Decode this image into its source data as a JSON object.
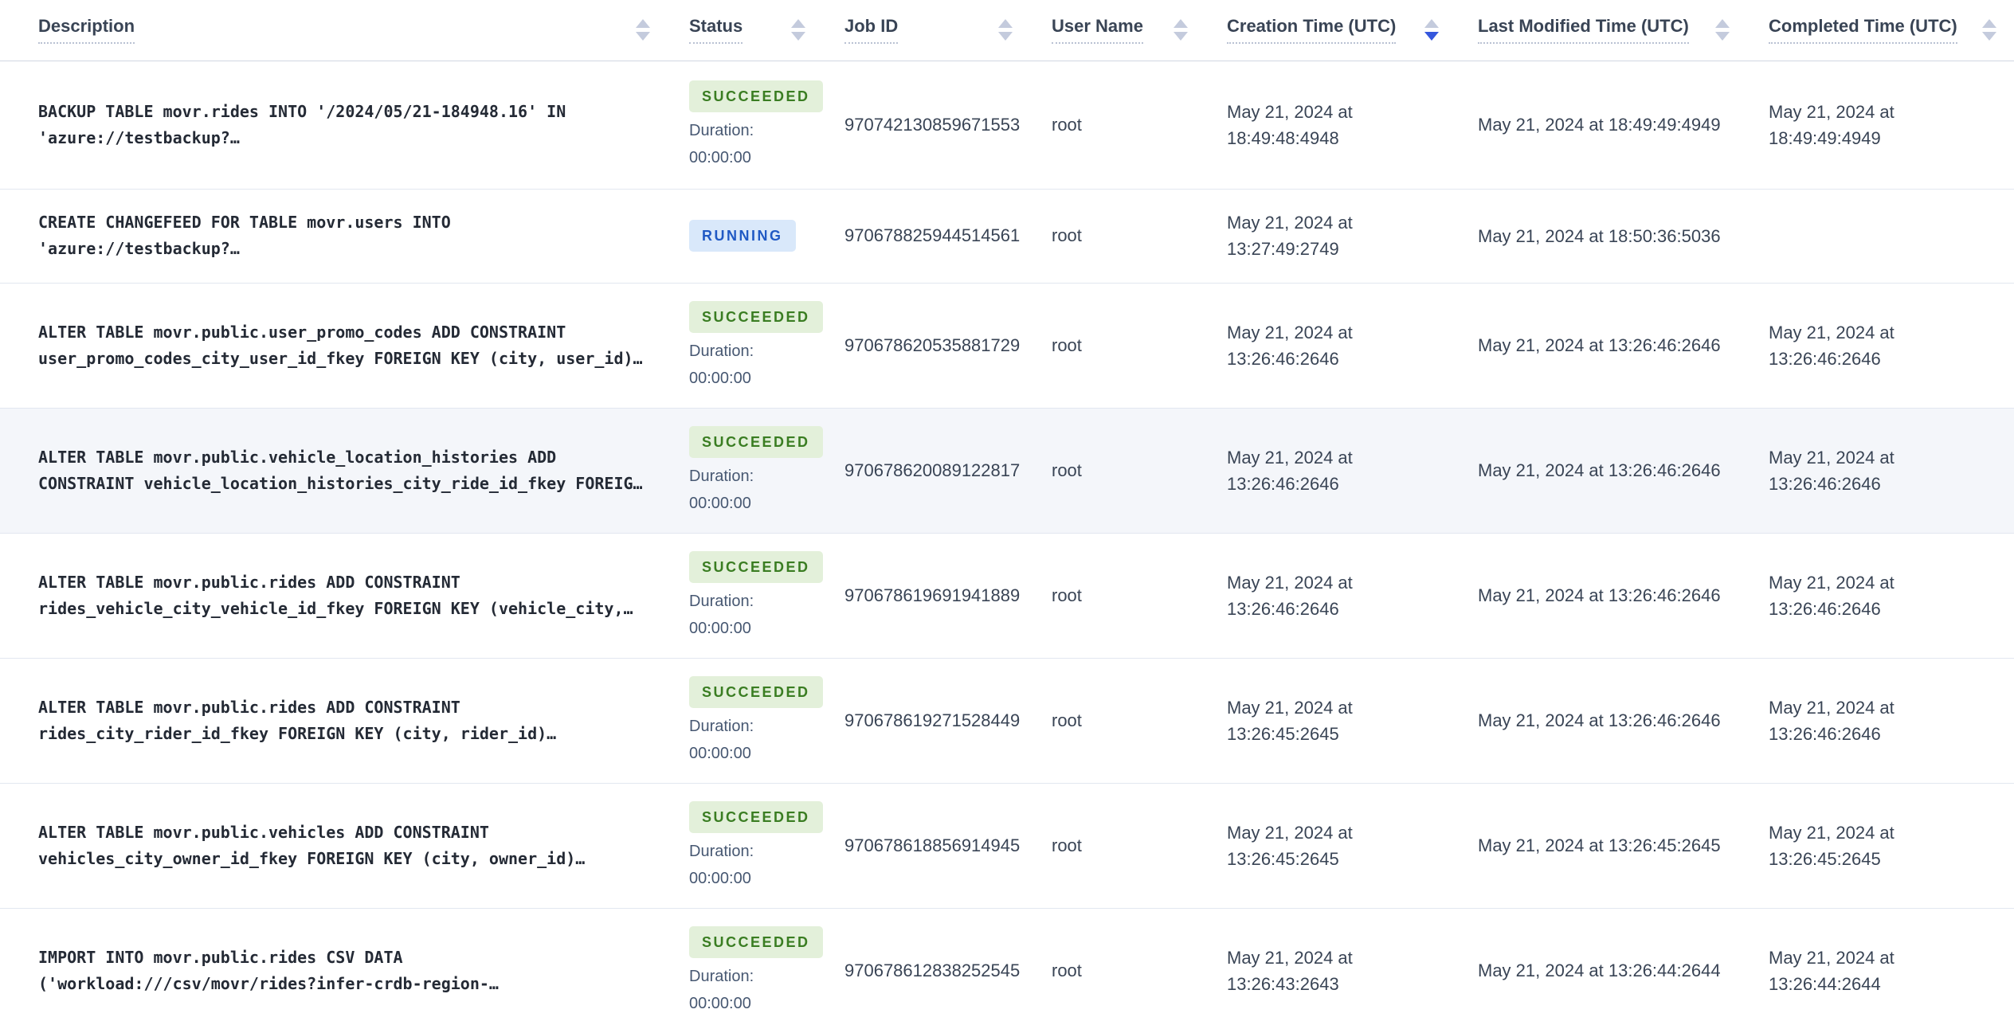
{
  "table": {
    "columns": [
      {
        "label": "Description",
        "sort": "none"
      },
      {
        "label": "Status",
        "sort": "none"
      },
      {
        "label": "Job ID",
        "sort": "none"
      },
      {
        "label": "User Name",
        "sort": "none"
      },
      {
        "label": "Creation Time (UTC)",
        "sort": "desc"
      },
      {
        "label": "Last Modified Time (UTC)",
        "sort": "none"
      },
      {
        "label": "Completed Time (UTC)",
        "sort": "none"
      }
    ],
    "rows": [
      {
        "description": "BACKUP TABLE movr.rides INTO '/2024/05/21-184948.16' IN 'azure://testbackup?…",
        "status": "SUCCEEDED",
        "duration_label": "Duration:",
        "duration": "00:00:00",
        "job_id": "970742130859671553",
        "user_name": "root",
        "creation_time": "May 21, 2024 at 18:49:48:4948",
        "last_modified_time": "May 21, 2024 at 18:49:49:4949",
        "completed_time": "May 21, 2024 at 18:49:49:4949",
        "highlighted": false
      },
      {
        "description": "CREATE CHANGEFEED FOR TABLE movr.users INTO 'azure://testbackup?…",
        "status": "RUNNING",
        "duration_label": "",
        "duration": "",
        "job_id": "970678825944514561",
        "user_name": "root",
        "creation_time": "May 21, 2024 at 13:27:49:2749",
        "last_modified_time": "May 21, 2024 at 18:50:36:5036",
        "completed_time": "",
        "highlighted": false
      },
      {
        "description": "ALTER TABLE movr.public.user_promo_codes ADD CONSTRAINT user_promo_codes_city_user_id_fkey FOREIGN KEY (city, user_id)…",
        "status": "SUCCEEDED",
        "duration_label": "Duration:",
        "duration": "00:00:00",
        "job_id": "970678620535881729",
        "user_name": "root",
        "creation_time": "May 21, 2024 at 13:26:46:2646",
        "last_modified_time": "May 21, 2024 at 13:26:46:2646",
        "completed_time": "May 21, 2024 at 13:26:46:2646",
        "highlighted": false
      },
      {
        "description": "ALTER TABLE movr.public.vehicle_location_histories ADD CONSTRAINT vehicle_location_histories_city_ride_id_fkey FOREIG…",
        "status": "SUCCEEDED",
        "duration_label": "Duration:",
        "duration": "00:00:00",
        "job_id": "970678620089122817",
        "user_name": "root",
        "creation_time": "May 21, 2024 at 13:26:46:2646",
        "last_modified_time": "May 21, 2024 at 13:26:46:2646",
        "completed_time": "May 21, 2024 at 13:26:46:2646",
        "highlighted": true
      },
      {
        "description": "ALTER TABLE movr.public.rides ADD CONSTRAINT rides_vehicle_city_vehicle_id_fkey FOREIGN KEY (vehicle_city,…",
        "status": "SUCCEEDED",
        "duration_label": "Duration:",
        "duration": "00:00:00",
        "job_id": "970678619691941889",
        "user_name": "root",
        "creation_time": "May 21, 2024 at 13:26:46:2646",
        "last_modified_time": "May 21, 2024 at 13:26:46:2646",
        "completed_time": "May 21, 2024 at 13:26:46:2646",
        "highlighted": false
      },
      {
        "description": "ALTER TABLE movr.public.rides ADD CONSTRAINT rides_city_rider_id_fkey FOREIGN KEY (city, rider_id)…",
        "status": "SUCCEEDED",
        "duration_label": "Duration:",
        "duration": "00:00:00",
        "job_id": "970678619271528449",
        "user_name": "root",
        "creation_time": "May 21, 2024 at 13:26:45:2645",
        "last_modified_time": "May 21, 2024 at 13:26:46:2646",
        "completed_time": "May 21, 2024 at 13:26:46:2646",
        "highlighted": false
      },
      {
        "description": "ALTER TABLE movr.public.vehicles ADD CONSTRAINT vehicles_city_owner_id_fkey FOREIGN KEY (city, owner_id)…",
        "status": "SUCCEEDED",
        "duration_label": "Duration:",
        "duration": "00:00:00",
        "job_id": "970678618856914945",
        "user_name": "root",
        "creation_time": "May 21, 2024 at 13:26:45:2645",
        "last_modified_time": "May 21, 2024 at 13:26:45:2645",
        "completed_time": "May 21, 2024 at 13:26:45:2645",
        "highlighted": false
      },
      {
        "description": "IMPORT INTO movr.public.rides CSV DATA ('workload:///csv/movr/rides?infer-crdb-region-…",
        "status": "SUCCEEDED",
        "duration_label": "Duration:",
        "duration": "00:00:00",
        "job_id": "970678612838252545",
        "user_name": "root",
        "creation_time": "May 21, 2024 at 13:26:43:2643",
        "last_modified_time": "May 21, 2024 at 13:26:44:2644",
        "completed_time": "May 21, 2024 at 13:26:44:2644",
        "highlighted": false
      }
    ]
  },
  "icons": {
    "sort": "sort-arrows-icon"
  },
  "colors": {
    "succeeded_badge_bg": "#e3f0da",
    "succeeded_badge_text": "#3a7d22",
    "running_badge_bg": "#d9e8fa",
    "running_badge_text": "#2059c4",
    "sort_active_arrow": "#3557dd",
    "sort_inactive_arrow": "#c4cbdd",
    "highlighted_row_bg": "#f4f6fa"
  }
}
